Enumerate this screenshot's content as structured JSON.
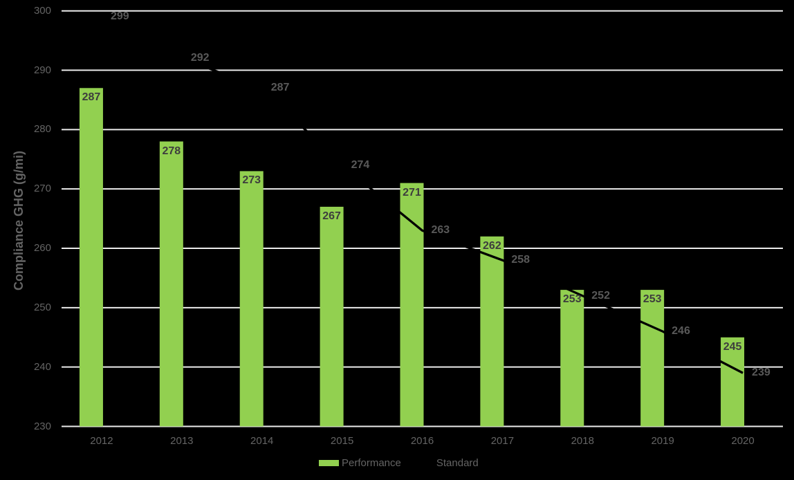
{
  "chart_data": {
    "type": "bar+line",
    "title": "",
    "ylabel": "Compliance GHG (g/mi)",
    "xlabel": "",
    "categories": [
      "2012",
      "2013",
      "2014",
      "2015",
      "2016",
      "2017",
      "2018",
      "2019",
      "2020"
    ],
    "series": [
      {
        "name": "Performance",
        "type": "bar",
        "color": "#92D050",
        "label_color": "#3D3D3D",
        "values": [
          287,
          278,
          273,
          267,
          271,
          262,
          253,
          253,
          245
        ]
      },
      {
        "name": "Standard",
        "type": "line",
        "color": "#000000",
        "label_color": "#595959",
        "values": [
          299,
          292,
          287,
          274,
          263,
          258,
          252,
          246,
          239
        ]
      }
    ],
    "ylim": [
      230,
      300
    ],
    "yticks": [
      300,
      290,
      280,
      270,
      260,
      250,
      240,
      230
    ],
    "grid": true,
    "gridline_color": "#ECECEC",
    "background_color": "#000000",
    "tick_label_color": "#646464",
    "legend_position": "bottom"
  }
}
